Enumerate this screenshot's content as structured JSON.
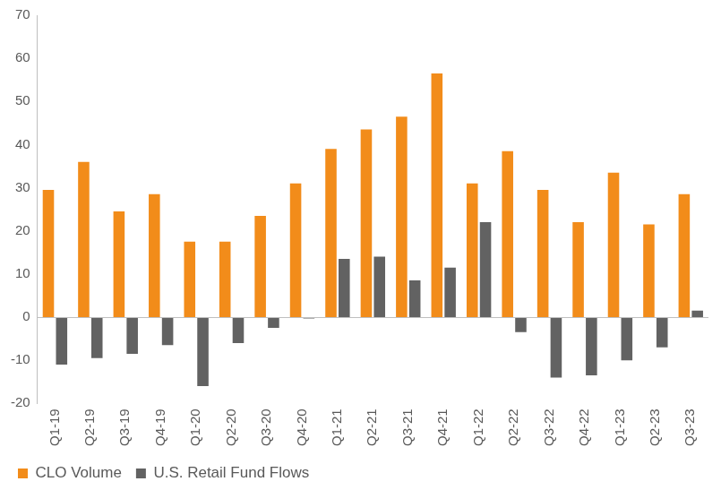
{
  "chart_data": {
    "type": "bar",
    "categories": [
      "Q1-19",
      "Q2-19",
      "Q3-19",
      "Q4-19",
      "Q1-20",
      "Q2-20",
      "Q3-20",
      "Q4-20",
      "Q1-21",
      "Q2-21",
      "Q3-21",
      "Q4-21",
      "Q1-22",
      "Q2-22",
      "Q3-22",
      "Q4-22",
      "Q1-23",
      "Q2-23",
      "Q3-23"
    ],
    "series": [
      {
        "name": "CLO Volume",
        "color": "#f28c1a",
        "values": [
          29.5,
          36,
          24.5,
          28.5,
          17.5,
          17.5,
          23.5,
          31,
          39,
          43.5,
          46.5,
          56.5,
          31,
          38.5,
          29.5,
          22,
          33.5,
          21.5,
          28.5
        ]
      },
      {
        "name": "U.S. Retail Fund Flows",
        "color": "#626262",
        "values": [
          -11,
          -9.5,
          -8.5,
          -6.5,
          -16,
          -6,
          -2.5,
          -0.3,
          13.5,
          14,
          8.5,
          11.5,
          22,
          -3.5,
          -14,
          -13.5,
          -10,
          -7,
          1.5
        ]
      }
    ],
    "ylim": [
      -20,
      70
    ],
    "yticks": [
      -20,
      -10,
      0,
      10,
      20,
      30,
      40,
      50,
      60,
      70
    ],
    "grid": false,
    "legend": "bottom"
  }
}
